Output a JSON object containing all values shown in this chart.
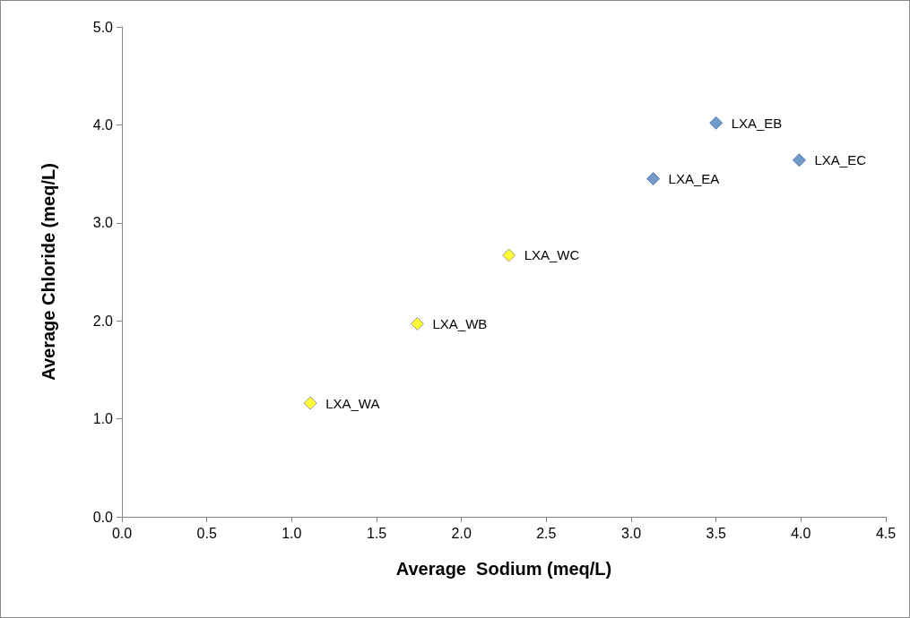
{
  "chart_data": {
    "type": "scatter",
    "xlabel": "Average  Sodium (meq/L)",
    "ylabel": "Average Chloride (meq/L)",
    "series": [
      {
        "color": "#ffff00",
        "x": [
          1.11,
          1.74,
          2.28
        ],
        "values": [
          1.16,
          1.97,
          2.67
        ]
      },
      {
        "color": "#4f81bd",
        "x": [
          3.13,
          3.5,
          3.99
        ],
        "values": [
          3.45,
          4.02,
          3.64
        ]
      }
    ],
    "annotations": [
      {
        "text": "LXA_WA",
        "x": 1.11,
        "y": 1.16
      },
      {
        "text": "LXA_WB",
        "x": 1.74,
        "y": 1.97
      },
      {
        "text": "LXA_WC",
        "x": 2.28,
        "y": 2.67
      },
      {
        "text": "LXA_EA",
        "x": 3.13,
        "y": 3.45
      },
      {
        "text": "LXA_EB",
        "x": 3.5,
        "y": 4.02
      },
      {
        "text": "LXA_EC",
        "x": 3.99,
        "y": 3.64
      }
    ],
    "xlim": [
      0,
      4.5
    ],
    "xticks": [
      {
        "value": 0,
        "label": "0.0"
      },
      0.5,
      {
        "value": 1,
        "label": "1.0"
      },
      1.5,
      {
        "value": 2,
        "label": "2.0"
      },
      2.5,
      {
        "value": 3,
        "label": "3.0"
      },
      3.5,
      {
        "value": 4,
        "label": "4.0"
      },
      4.5
    ],
    "ylim": [
      0,
      5
    ],
    "yticks": [
      {
        "value": 0,
        "label": "0.0"
      },
      {
        "value": 1,
        "label": "1.0"
      },
      {
        "value": 2,
        "label": "2.0"
      },
      {
        "value": 3,
        "label": "3.0"
      },
      {
        "value": 4,
        "label": "4.0"
      },
      {
        "value": 5,
        "label": "5.0"
      }
    ],
    "grid": false,
    "marker": "diamond"
  }
}
